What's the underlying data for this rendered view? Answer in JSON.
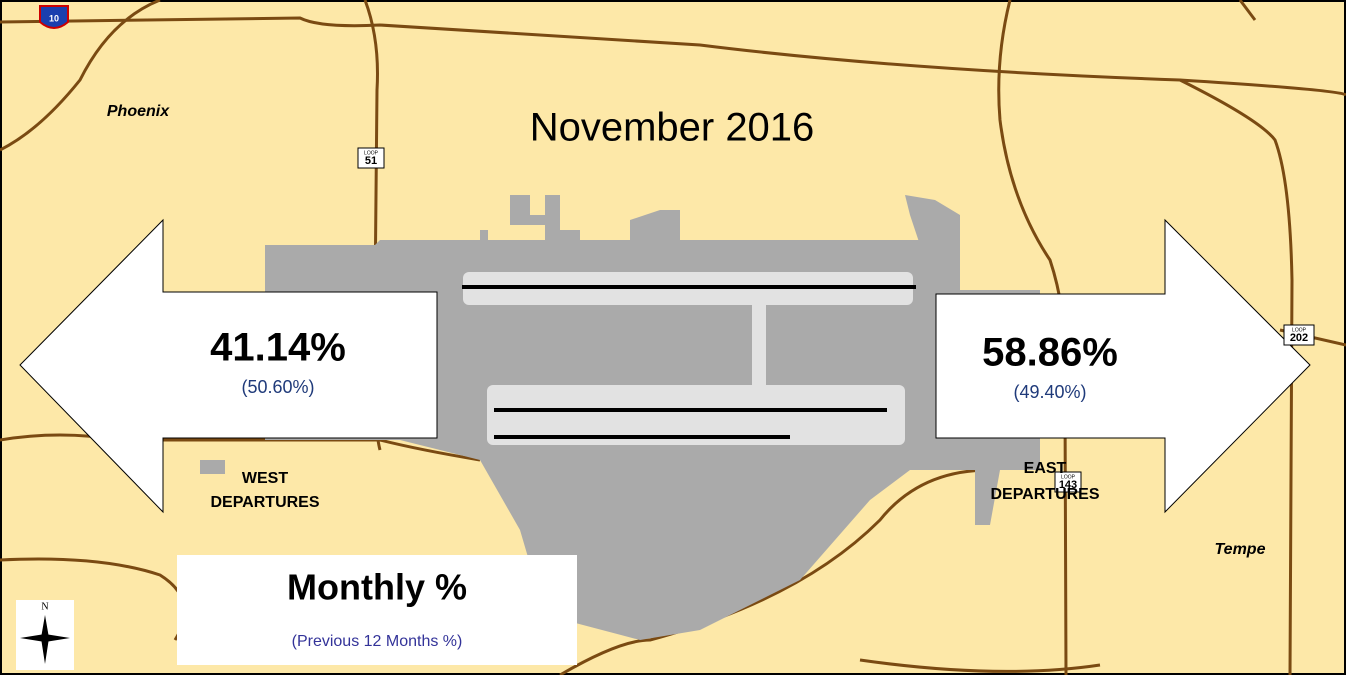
{
  "title": "November 2016",
  "west": {
    "monthly": "41.14%",
    "previous": "(50.60%)",
    "label": [
      "WEST",
      "DEPARTURES"
    ]
  },
  "east": {
    "monthly": "58.86%",
    "previous": "(49.40%)",
    "label": [
      "EAST",
      "DEPARTURES"
    ]
  },
  "legend": {
    "title": "Monthly %",
    "subtitle": "(Previous 12 Months %)"
  },
  "places": [
    "Phoenix",
    "Tempe"
  ],
  "shields": [
    {
      "loop": "",
      "number": "10"
    },
    {
      "loop": "LOOP",
      "number": "51"
    },
    {
      "loop": "LOOP",
      "number": "202"
    },
    {
      "loop": "LOOP",
      "number": "143"
    }
  ],
  "compass": "N"
}
